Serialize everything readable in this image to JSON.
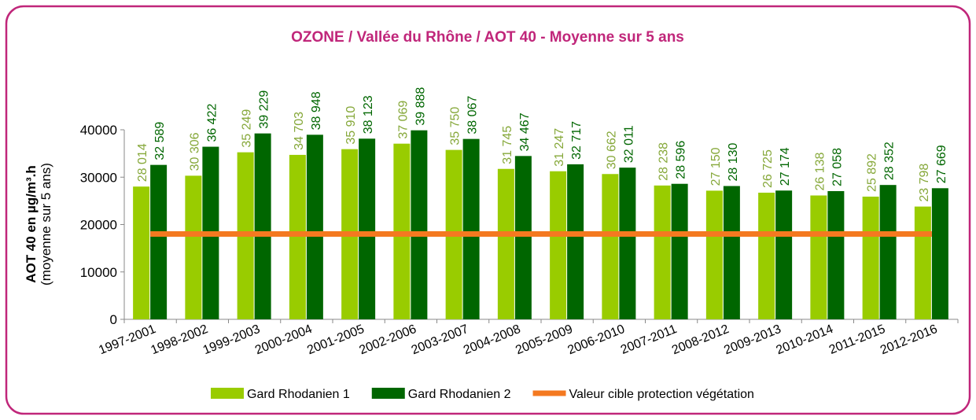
{
  "chart_data": {
    "type": "bar",
    "title": "OZONE / Vallée du Rhône / AOT 40 - Moyenne sur 5 ans",
    "y_label": "AOT 40 en µg/m³.h",
    "y_label_sub": "(moyenne sur 5 ans)",
    "categories": [
      "1997-2001",
      "1998-2002",
      "1999-2003",
      "2000-2004",
      "2001-2005",
      "2002-2006",
      "2003-2007",
      "2004-2008",
      "2005-2009",
      "2006-2010",
      "2007-2011",
      "2008-2012",
      "2009-2013",
      "2010-2014",
      "2011-2015",
      "2012-2016"
    ],
    "series": [
      {
        "name": "Gard Rhodanien 1",
        "type": "bar",
        "color": "#99cc00",
        "values": [
          28014,
          30306,
          35249,
          34703,
          35910,
          37069,
          35750,
          31745,
          31247,
          30662,
          28238,
          27150,
          26725,
          26138,
          25892,
          23798
        ],
        "value_labels": [
          "28 014",
          "30 306",
          "35 249",
          "34 703",
          "35 910",
          "37 069",
          "35 750",
          "31 745",
          "31 247",
          "30 662",
          "28 238",
          "27 150",
          "26 725",
          "26 138",
          "25 892",
          "23 798"
        ]
      },
      {
        "name": "Gard Rhodanien 2",
        "type": "bar",
        "color": "#006600",
        "values": [
          32589,
          36422,
          39229,
          38948,
          38123,
          39888,
          38067,
          34467,
          32717,
          32011,
          28596,
          28130,
          27174,
          27058,
          28352,
          27669
        ],
        "value_labels": [
          "32 589",
          "36 422",
          "39 229",
          "38 948",
          "38 123",
          "39 888",
          "38 067",
          "34 467",
          "32 717",
          "32 011",
          "28 596",
          "28 130",
          "27 174",
          "27 058",
          "28 352",
          "27 669"
        ]
      },
      {
        "name": "Valeur cible protection végétation",
        "type": "line",
        "color": "#f47920",
        "values": [
          18000,
          18000,
          18000,
          18000,
          18000,
          18000,
          18000,
          18000,
          18000,
          18000,
          18000,
          18000,
          18000,
          18000,
          18000,
          18000
        ]
      }
    ],
    "ylim": [
      0,
      40000
    ],
    "yticks": [
      0,
      10000,
      20000,
      30000,
      40000
    ],
    "legend": "bottom"
  }
}
